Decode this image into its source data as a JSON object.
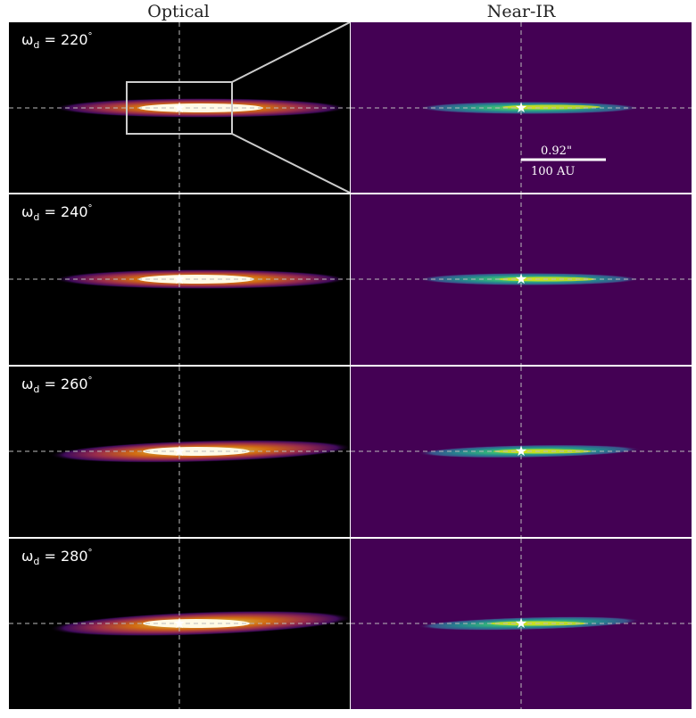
{
  "columns": {
    "left": "Optical",
    "right": "Near-IR"
  },
  "panels": [
    {
      "omega": "220",
      "degree": "°"
    },
    {
      "omega": "240",
      "degree": "°"
    },
    {
      "omega": "260",
      "degree": "°"
    },
    {
      "omega": "280",
      "degree": "°"
    }
  ],
  "omega_symbol": "ω",
  "omega_sub": "d",
  "scale_bar": {
    "angle": "0.92\"",
    "distance": "100 AU"
  },
  "colors": {
    "optical_bg": "#000000",
    "nir_bg": "#440154",
    "frame": "#bbbbbb"
  }
}
